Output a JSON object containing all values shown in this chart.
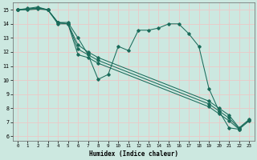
{
  "xlabel": "Humidex (Indice chaleur)",
  "bg_color": "#cce8e0",
  "grid_color": "#ecc8c8",
  "line_color": "#1a6b5a",
  "xlim": [
    -0.5,
    23.5
  ],
  "ylim": [
    5.7,
    15.5
  ],
  "xticks": [
    0,
    1,
    2,
    3,
    4,
    5,
    6,
    7,
    8,
    9,
    10,
    11,
    12,
    13,
    14,
    15,
    16,
    17,
    18,
    19,
    20,
    21,
    22,
    23
  ],
  "yticks": [
    6,
    7,
    8,
    9,
    10,
    11,
    12,
    13,
    14,
    15
  ],
  "series": [
    {
      "x": [
        0,
        1,
        2,
        3,
        4,
        5,
        6,
        7,
        8,
        9,
        10,
        11,
        12,
        13,
        14,
        15,
        16,
        17,
        18,
        19,
        20,
        21,
        22
      ],
      "y": [
        15.0,
        15.1,
        15.2,
        15.0,
        14.1,
        14.1,
        13.0,
        11.8,
        10.05,
        10.4,
        12.4,
        12.1,
        13.55,
        13.55,
        13.7,
        14.0,
        14.0,
        13.3,
        12.4,
        9.4,
        7.8,
        6.6,
        6.5
      ]
    },
    {
      "x": [
        0,
        1,
        2,
        3,
        4,
        5,
        6,
        7,
        8,
        19,
        20,
        21,
        22,
        23
      ],
      "y": [
        15.0,
        15.05,
        15.15,
        15.0,
        14.1,
        14.0,
        12.5,
        12.0,
        11.6,
        8.5,
        8.0,
        7.5,
        6.6,
        7.2
      ]
    },
    {
      "x": [
        0,
        1,
        2,
        3,
        4,
        5,
        6,
        7,
        8,
        19,
        20,
        21,
        22,
        23
      ],
      "y": [
        15.0,
        15.05,
        15.1,
        15.0,
        14.1,
        14.0,
        12.2,
        11.8,
        11.4,
        8.3,
        7.8,
        7.3,
        6.55,
        7.15
      ]
    },
    {
      "x": [
        0,
        1,
        2,
        3,
        4,
        5,
        6,
        7,
        8,
        19,
        20,
        21,
        22,
        23
      ],
      "y": [
        15.0,
        15.0,
        15.05,
        15.0,
        14.0,
        14.0,
        11.8,
        11.6,
        11.2,
        8.1,
        7.6,
        7.1,
        6.5,
        7.1
      ]
    }
  ]
}
